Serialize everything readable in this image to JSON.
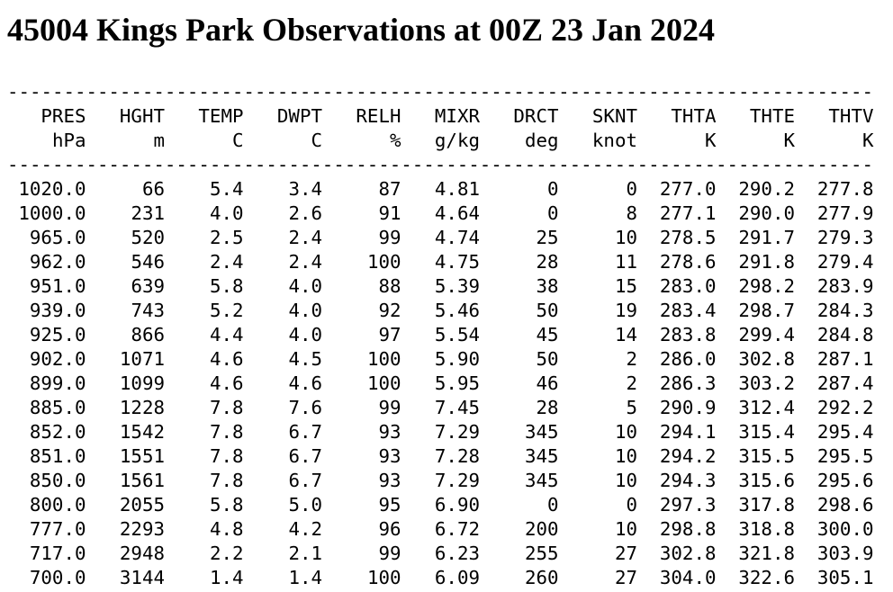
{
  "title": "45004 Kings Park Observations at 00Z 23 Jan 2024",
  "table": {
    "separator": "-----------------------------------------------------------------------------",
    "columns": [
      "PRES",
      "HGHT",
      "TEMP",
      "DWPT",
      "RELH",
      "MIXR",
      "DRCT",
      "SKNT",
      "THTA",
      "THTE",
      "THTV"
    ],
    "units": [
      "hPa",
      "m",
      "C",
      "C",
      "%",
      "g/kg",
      "deg",
      "knot",
      "K",
      "K",
      "K"
    ],
    "rows": [
      [
        "1020.0",
        "66",
        "5.4",
        "3.4",
        "87",
        "4.81",
        "0",
        "0",
        "277.0",
        "290.2",
        "277.8"
      ],
      [
        "1000.0",
        "231",
        "4.0",
        "2.6",
        "91",
        "4.64",
        "0",
        "8",
        "277.1",
        "290.0",
        "277.9"
      ],
      [
        "965.0",
        "520",
        "2.5",
        "2.4",
        "99",
        "4.74",
        "25",
        "10",
        "278.5",
        "291.7",
        "279.3"
      ],
      [
        "962.0",
        "546",
        "2.4",
        "2.4",
        "100",
        "4.75",
        "28",
        "11",
        "278.6",
        "291.8",
        "279.4"
      ],
      [
        "951.0",
        "639",
        "5.8",
        "4.0",
        "88",
        "5.39",
        "38",
        "15",
        "283.0",
        "298.2",
        "283.9"
      ],
      [
        "939.0",
        "743",
        "5.2",
        "4.0",
        "92",
        "5.46",
        "50",
        "19",
        "283.4",
        "298.7",
        "284.3"
      ],
      [
        "925.0",
        "866",
        "4.4",
        "4.0",
        "97",
        "5.54",
        "45",
        "14",
        "283.8",
        "299.4",
        "284.8"
      ],
      [
        "902.0",
        "1071",
        "4.6",
        "4.5",
        "100",
        "5.90",
        "50",
        "2",
        "286.0",
        "302.8",
        "287.1"
      ],
      [
        "899.0",
        "1099",
        "4.6",
        "4.6",
        "100",
        "5.95",
        "46",
        "2",
        "286.3",
        "303.2",
        "287.4"
      ],
      [
        "885.0",
        "1228",
        "7.8",
        "7.6",
        "99",
        "7.45",
        "28",
        "5",
        "290.9",
        "312.4",
        "292.2"
      ],
      [
        "852.0",
        "1542",
        "7.8",
        "6.7",
        "93",
        "7.29",
        "345",
        "10",
        "294.1",
        "315.4",
        "295.4"
      ],
      [
        "851.0",
        "1551",
        "7.8",
        "6.7",
        "93",
        "7.28",
        "345",
        "10",
        "294.2",
        "315.5",
        "295.5"
      ],
      [
        "850.0",
        "1561",
        "7.8",
        "6.7",
        "93",
        "7.29",
        "345",
        "10",
        "294.3",
        "315.6",
        "295.6"
      ],
      [
        "800.0",
        "2055",
        "5.8",
        "5.0",
        "95",
        "6.90",
        "0",
        "0",
        "297.3",
        "317.8",
        "298.6"
      ],
      [
        "777.0",
        "2293",
        "4.8",
        "4.2",
        "96",
        "6.72",
        "200",
        "10",
        "298.8",
        "318.8",
        "300.0"
      ],
      [
        "717.0",
        "2948",
        "2.2",
        "2.1",
        "99",
        "6.23",
        "255",
        "27",
        "302.8",
        "321.8",
        "303.9"
      ],
      [
        "700.0",
        "3144",
        "1.4",
        "1.4",
        "100",
        "6.09",
        "260",
        "27",
        "304.0",
        "322.6",
        "305.1"
      ]
    ]
  }
}
